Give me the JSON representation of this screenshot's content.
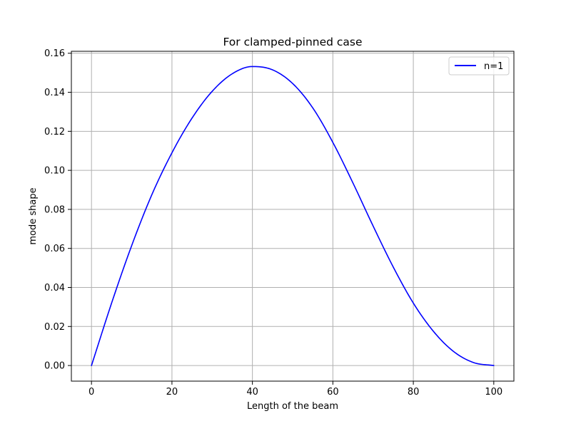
{
  "chart_data": {
    "type": "line",
    "title": "For clamped-pinned case",
    "xlabel": "Length of the beam",
    "ylabel": "mode shape",
    "xlim": [
      -5,
      105
    ],
    "ylim": [
      -0.008,
      0.161
    ],
    "xticks": [
      0,
      20,
      40,
      60,
      80,
      100
    ],
    "yticks": [
      0.0,
      0.02,
      0.04,
      0.06,
      0.08,
      0.1,
      0.12,
      0.14,
      0.16
    ],
    "xtick_labels": [
      "0",
      "20",
      "40",
      "60",
      "80",
      "100"
    ],
    "ytick_labels": [
      "0.00",
      "0.02",
      "0.04",
      "0.06",
      "0.08",
      "0.10",
      "0.12",
      "0.14",
      "0.16"
    ],
    "grid": true,
    "legend_position": "top-right",
    "series": [
      {
        "name": "n=1",
        "color": "#0000ff",
        "x": [
          0,
          5,
          10,
          15,
          20,
          25,
          30,
          35,
          40,
          45,
          50,
          55,
          60,
          65,
          70,
          75,
          80,
          85,
          90,
          95,
          100
        ],
        "y": [
          0.0,
          0.032,
          0.0615,
          0.0875,
          0.109,
          0.1268,
          0.1405,
          0.1495,
          0.1532,
          0.1515,
          0.1445,
          0.132,
          0.1143,
          0.0935,
          0.0715,
          0.0505,
          0.032,
          0.0175,
          0.0072,
          0.0015,
          0.0
        ]
      }
    ]
  }
}
